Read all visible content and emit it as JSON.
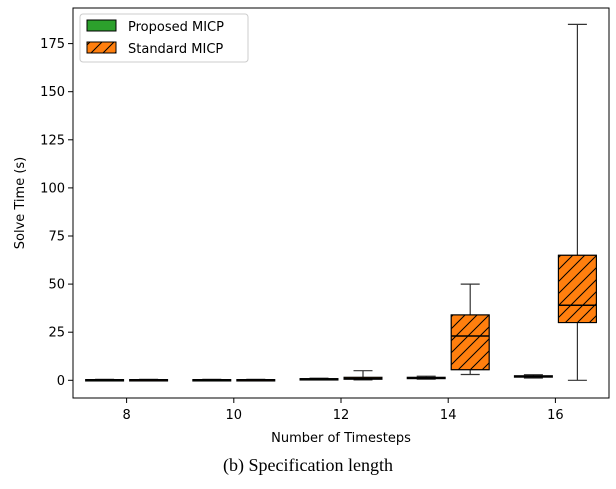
{
  "caption": "(b) Specification length",
  "chart_data": {
    "type": "box",
    "xlabel": "Number of Timesteps",
    "ylabel": "Solve Time (s)",
    "categories": [
      "8",
      "10",
      "12",
      "14",
      "16"
    ],
    "ylim": [
      -9.2,
      193.5
    ],
    "yticks": [
      0,
      25,
      50,
      75,
      100,
      125,
      150,
      175
    ],
    "legend_position": "top-left",
    "series": [
      {
        "name": "Proposed MICP",
        "color": "#2ca02c",
        "hatch": false,
        "boxes": [
          {
            "min": 0.1,
            "q1": 0.2,
            "median": 0.3,
            "q3": 0.4,
            "max": 0.5
          },
          {
            "min": 0.1,
            "q1": 0.2,
            "median": 0.3,
            "q3": 0.4,
            "max": 0.5
          },
          {
            "min": 0.3,
            "q1": 0.5,
            "median": 0.7,
            "q3": 0.9,
            "max": 1.1
          },
          {
            "min": 0.6,
            "q1": 0.9,
            "median": 1.2,
            "q3": 1.6,
            "max": 2.1
          },
          {
            "min": 1.2,
            "q1": 1.6,
            "median": 2.0,
            "q3": 2.4,
            "max": 2.9
          }
        ]
      },
      {
        "name": "Standard MICP",
        "color": "#ff7f0e",
        "hatch": true,
        "boxes": [
          {
            "min": 0.1,
            "q1": 0.2,
            "median": 0.3,
            "q3": 0.4,
            "max": 0.5
          },
          {
            "min": 0.1,
            "q1": 0.2,
            "median": 0.3,
            "q3": 0.4,
            "max": 0.5
          },
          {
            "min": 0.2,
            "q1": 0.5,
            "median": 1.0,
            "q3": 1.6,
            "max": 5.0
          },
          {
            "min": 3.0,
            "q1": 5.5,
            "median": 23.0,
            "q3": 34.0,
            "max": 50.0
          },
          {
            "min": 0.0,
            "q1": 30.0,
            "median": 39.0,
            "q3": 65.0,
            "max": 185.0
          }
        ]
      }
    ]
  }
}
